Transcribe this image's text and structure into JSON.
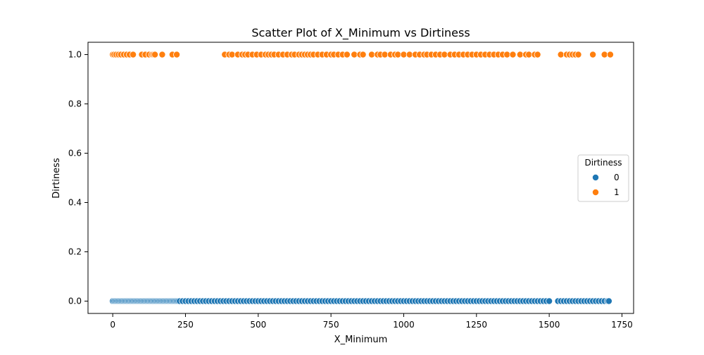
{
  "chart_data": {
    "type": "scatter",
    "title": "Scatter Plot of X_Minimum vs Dirtiness",
    "xlabel": "X_Minimum",
    "ylabel": "Dirtiness",
    "xlim": [
      -85,
      1790
    ],
    "ylim": [
      -0.05,
      1.05
    ],
    "xticks": [
      0,
      250,
      500,
      750,
      1000,
      1250,
      1500,
      1750
    ],
    "yticks": [
      0.0,
      0.2,
      0.4,
      0.6,
      0.8,
      1.0
    ],
    "xtick_labels": [
      "0",
      "250",
      "500",
      "750",
      "1000",
      "1250",
      "1500",
      "1750"
    ],
    "ytick_labels": [
      "0.0",
      "0.2",
      "0.4",
      "0.6",
      "0.8",
      "1.0"
    ],
    "grid": false,
    "legend": {
      "title": "Dirtiness",
      "position": "center-right",
      "entries": [
        "0",
        "1"
      ]
    },
    "series": [
      {
        "name": "0",
        "color": "#1f77b4",
        "y_value": 0,
        "x": [
          0,
          5,
          10,
          15,
          20,
          25,
          30,
          35,
          40,
          45,
          50,
          55,
          60,
          65,
          70,
          75,
          80,
          85,
          90,
          95,
          100,
          105,
          110,
          115,
          120,
          125,
          130,
          135,
          140,
          145,
          150,
          155,
          160,
          165,
          170,
          175,
          180,
          185,
          190,
          195,
          200,
          205,
          210,
          215,
          220,
          225,
          230,
          240,
          250,
          260,
          270,
          280,
          290,
          300,
          310,
          320,
          330,
          340,
          350,
          360,
          370,
          380,
          390,
          400,
          410,
          420,
          430,
          440,
          450,
          460,
          470,
          480,
          490,
          500,
          510,
          520,
          530,
          540,
          550,
          560,
          570,
          580,
          590,
          600,
          610,
          620,
          630,
          640,
          650,
          660,
          670,
          680,
          690,
          700,
          710,
          720,
          730,
          740,
          750,
          760,
          770,
          780,
          790,
          800,
          810,
          820,
          830,
          840,
          850,
          860,
          870,
          880,
          890,
          900,
          910,
          920,
          930,
          940,
          950,
          960,
          970,
          980,
          990,
          1000,
          1010,
          1020,
          1030,
          1040,
          1050,
          1060,
          1070,
          1080,
          1090,
          1100,
          1110,
          1120,
          1130,
          1140,
          1150,
          1160,
          1170,
          1180,
          1190,
          1200,
          1210,
          1220,
          1230,
          1240,
          1250,
          1260,
          1270,
          1280,
          1290,
          1300,
          1310,
          1320,
          1330,
          1340,
          1350,
          1360,
          1370,
          1380,
          1390,
          1400,
          1410,
          1420,
          1430,
          1440,
          1450,
          1460,
          1470,
          1480,
          1490,
          1500,
          1530,
          1540,
          1550,
          1560,
          1570,
          1580,
          1590,
          1600,
          1610,
          1620,
          1630,
          1640,
          1650,
          1660,
          1670,
          1680,
          1690,
          1700,
          1705
        ]
      },
      {
        "name": "1",
        "color": "#ff7f0e",
        "y_value": 1,
        "x": [
          0,
          5,
          12,
          20,
          28,
          38,
          48,
          58,
          70,
          100,
          112,
          125,
          135,
          140,
          145,
          170,
          205,
          220,
          385,
          400,
          410,
          430,
          445,
          455,
          465,
          480,
          495,
          510,
          525,
          535,
          545,
          555,
          570,
          585,
          600,
          615,
          625,
          640,
          650,
          660,
          670,
          680,
          690,
          705,
          720,
          735,
          750,
          760,
          775,
          790,
          805,
          830,
          850,
          860,
          890,
          910,
          920,
          935,
          955,
          970,
          980,
          1000,
          1020,
          1040,
          1055,
          1070,
          1080,
          1095,
          1110,
          1125,
          1140,
          1160,
          1175,
          1190,
          1205,
          1220,
          1235,
          1250,
          1265,
          1280,
          1295,
          1310,
          1325,
          1340,
          1355,
          1375,
          1400,
          1420,
          1430,
          1450,
          1460,
          1540,
          1560,
          1570,
          1580,
          1590,
          1600,
          1650,
          1690,
          1710
        ]
      }
    ]
  }
}
